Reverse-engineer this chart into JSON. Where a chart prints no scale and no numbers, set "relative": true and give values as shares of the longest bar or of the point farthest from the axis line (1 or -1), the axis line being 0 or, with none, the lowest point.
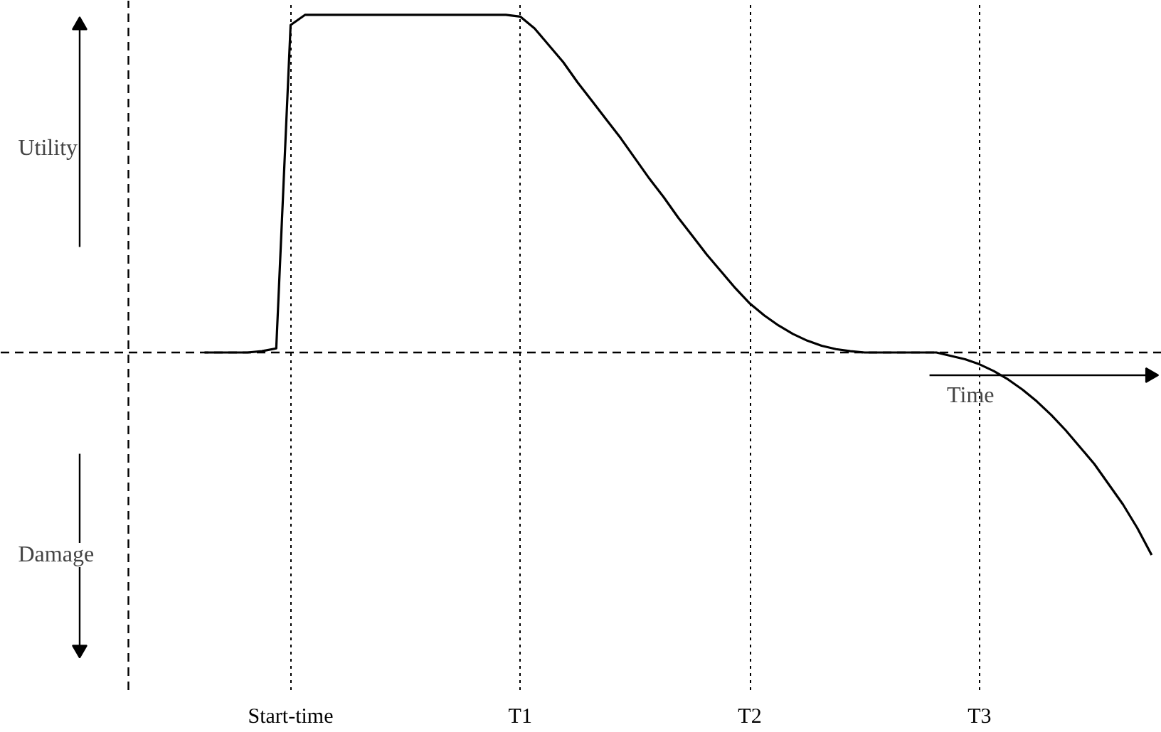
{
  "chart_data": {
    "type": "line",
    "relative": true,
    "xlabel": "Time",
    "annotations": [
      "Utility",
      "Damage"
    ],
    "categories": [
      null,
      null,
      null,
      null,
      null,
      null,
      "Start-time",
      null,
      null,
      null,
      null,
      null,
      null,
      null,
      null,
      null,
      null,
      null,
      null,
      null,
      null,
      null,
      "T1",
      null,
      null,
      null,
      null,
      null,
      null,
      null,
      null,
      null,
      null,
      null,
      null,
      null,
      null,
      null,
      "T2",
      null,
      null,
      null,
      null,
      null,
      null,
      null,
      null,
      null,
      null,
      null,
      null,
      null,
      null,
      null,
      "T3",
      null,
      null,
      null,
      null,
      null,
      null,
      null,
      null,
      null,
      null,
      null,
      null
    ],
    "grid": "x",
    "ref_lines": [
      {
        "axis": "y",
        "value": 0,
        "line_style": "dashed"
      }
    ],
    "series": [
      {
        "color": "#000000",
        "values": [
          0,
          0,
          0,
          0,
          0.004,
          0.012,
          0.97,
          1,
          1,
          1,
          1,
          1,
          1,
          1,
          1,
          1,
          1,
          1,
          1,
          1,
          1,
          1,
          0.995,
          0.96,
          0.91,
          0.86,
          0.8,
          0.745,
          0.69,
          0.635,
          0.575,
          0.515,
          0.46,
          0.4,
          0.345,
          0.29,
          0.24,
          0.19,
          0.145,
          0.11,
          0.08,
          0.055,
          0.035,
          0.02,
          0.01,
          0.004,
          0,
          0,
          0,
          0,
          0,
          0,
          -0.01,
          -0.02,
          -0.035,
          -0.055,
          -0.08,
          -0.11,
          -0.145,
          -0.185,
          -0.23,
          -0.28,
          -0.33,
          -0.39,
          -0.45,
          -0.52,
          -0.6
        ]
      }
    ]
  }
}
